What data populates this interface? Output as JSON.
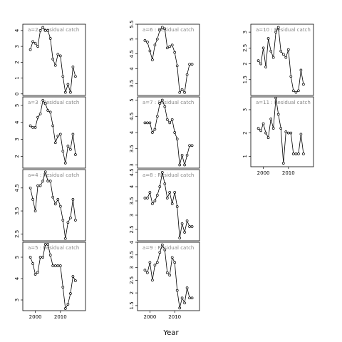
{
  "chart_data": {
    "type": "line",
    "xlabel": "Year",
    "point_style": "open circles",
    "line_color": "#000000",
    "panel_title_color": "#888888",
    "panels": [
      {
        "title": "a=2 : Residual catch",
        "x": [
          1998,
          1999,
          2000,
          2001,
          2002,
          2003,
          2004,
          2005,
          2006,
          2007,
          2008,
          2009,
          2010,
          2011,
          2012,
          2013,
          2014,
          2015,
          2016
        ],
        "y": [
          2.8,
          3.3,
          3.2,
          3.0,
          4.0,
          4.2,
          4.0,
          4.0,
          3.5,
          2.2,
          1.8,
          2.5,
          2.4,
          1.1,
          0.1,
          0.6,
          0.1,
          1.7,
          1.1
        ],
        "xlim": [
          1995,
          2020
        ],
        "ylim": [
          -0.1,
          4.4
        ],
        "yticks": [
          0,
          1,
          2,
          3,
          4
        ],
        "show_x_ticks": false
      },
      {
        "title": "a=3 : Residual catch",
        "x": [
          1998,
          1999,
          2000,
          2001,
          2002,
          2003,
          2004,
          2005,
          2006,
          2007,
          2008,
          2009,
          2010,
          2011,
          2012,
          2013,
          2014,
          2015,
          2016
        ],
        "y": [
          3.8,
          3.7,
          3.7,
          4.3,
          4.5,
          5.3,
          5.1,
          4.7,
          4.6,
          3.8,
          2.8,
          3.2,
          3.3,
          2.3,
          1.6,
          2.6,
          2.4,
          3.3,
          2.1
        ],
        "xlim": [
          1995,
          2020
        ],
        "ylim": [
          1.3,
          5.5
        ],
        "yticks": [
          2,
          3,
          4,
          5
        ],
        "show_x_ticks": false
      },
      {
        "title": "a=4 : Residual catch",
        "x": [
          1998,
          1999,
          2000,
          2001,
          2002,
          2003,
          2004,
          2005,
          2006,
          2007,
          2008,
          2009,
          2010,
          2011,
          2012,
          2013,
          2014,
          2015,
          2016
        ],
        "y": [
          4.5,
          4.0,
          3.5,
          4.6,
          4.6,
          4.8,
          5.2,
          4.8,
          4.8,
          4.1,
          3.8,
          4.0,
          3.7,
          3.1,
          2.3,
          3.0,
          3.2,
          4.0,
          3.1
        ],
        "xlim": [
          1995,
          2020
        ],
        "ylim": [
          2.2,
          5.3
        ],
        "yticks": [
          2.5,
          3.5,
          4.5
        ],
        "show_x_ticks": false
      },
      {
        "title": "a=5 : Residual catch",
        "x": [
          1998,
          1999,
          2000,
          2001,
          2002,
          2003,
          2004,
          2005,
          2006,
          2007,
          2008,
          2009,
          2010,
          2011,
          2012,
          2013,
          2014,
          2015,
          2016
        ],
        "y": [
          5.0,
          4.7,
          4.2,
          4.3,
          5.0,
          5.0,
          5.6,
          5.6,
          5.1,
          4.6,
          4.6,
          4.6,
          4.6,
          3.6,
          2.6,
          2.8,
          3.3,
          4.1,
          3.9
        ],
        "xlim": [
          1995,
          2020
        ],
        "ylim": [
          2.5,
          5.7
        ],
        "yticks": [
          3.0,
          4.0,
          5.0
        ],
        "show_x_ticks": true,
        "xticks": [
          2000,
          2010
        ]
      },
      {
        "title": "a=6 : Residual catch",
        "x": [
          1998,
          1999,
          2000,
          2001,
          2002,
          2003,
          2004,
          2005,
          2006,
          2007,
          2008,
          2009,
          2010,
          2011,
          2012,
          2013,
          2014,
          2015,
          2016,
          2017
        ],
        "y": [
          4.95,
          4.9,
          4.6,
          4.3,
          4.8,
          5.0,
          5.3,
          5.4,
          5.35,
          4.7,
          4.75,
          4.8,
          4.55,
          4.1,
          3.2,
          3.3,
          3.2,
          3.8,
          4.15,
          4.15
        ],
        "xlim": [
          1995,
          2020
        ],
        "ylim": [
          3.1,
          5.5
        ],
        "yticks": [
          3.5,
          4.0,
          4.5,
          5.0,
          5.5
        ],
        "show_x_ticks": false
      },
      {
        "title": "a=7 : Residual catch",
        "x": [
          1998,
          1999,
          2000,
          2001,
          2002,
          2003,
          2004,
          2005,
          2006,
          2007,
          2008,
          2009,
          2010,
          2011,
          2012,
          2013,
          2014,
          2015,
          2016,
          2017
        ],
        "y": [
          4.3,
          4.3,
          4.3,
          4.0,
          4.1,
          4.5,
          4.9,
          5.0,
          4.8,
          4.4,
          4.3,
          4.4,
          4.0,
          3.8,
          3.0,
          3.3,
          3.0,
          3.3,
          3.6,
          3.6
        ],
        "xlim": [
          1995,
          2020
        ],
        "ylim": [
          2.9,
          5.1
        ],
        "yticks": [
          3.0,
          3.5,
          4.0,
          4.5,
          5.0
        ],
        "show_x_ticks": false
      },
      {
        "title": "a=8 : Residual catch",
        "x": [
          1998,
          1999,
          2000,
          2001,
          2002,
          2003,
          2004,
          2005,
          2006,
          2007,
          2008,
          2009,
          2010,
          2011,
          2012,
          2013,
          2014,
          2015,
          2016,
          2017
        ],
        "y": [
          3.6,
          3.6,
          3.8,
          3.4,
          3.5,
          3.7,
          4.0,
          4.5,
          4.1,
          3.6,
          3.8,
          3.4,
          3.8,
          3.3,
          2.2,
          2.7,
          2.4,
          2.8,
          2.6,
          2.6
        ],
        "xlim": [
          1995,
          2020
        ],
        "ylim": [
          2.1,
          4.6
        ],
        "yticks": [
          2.5,
          3.0,
          3.5,
          4.0,
          4.5
        ],
        "show_x_ticks": false
      },
      {
        "title": "a=9 : Residual catch",
        "x": [
          1998,
          1999,
          2000,
          2001,
          2002,
          2003,
          2004,
          2005,
          2006,
          2007,
          2008,
          2009,
          2010,
          2011,
          2012,
          2013,
          2014,
          2015,
          2016,
          2017
        ],
        "y": [
          2.9,
          2.8,
          3.2,
          2.5,
          3.1,
          3.2,
          3.6,
          3.9,
          3.7,
          2.8,
          2.7,
          3.4,
          3.2,
          2.1,
          1.4,
          1.8,
          1.6,
          2.2,
          1.8,
          1.8
        ],
        "xlim": [
          1995,
          2020
        ],
        "ylim": [
          1.3,
          4.0
        ],
        "yticks": [
          1.5,
          2.0,
          2.5,
          3.0,
          3.5,
          4.0
        ],
        "show_x_ticks": true,
        "xticks": [
          2000,
          2010
        ]
      },
      {
        "title": "a=10 : Residual catch",
        "x": [
          1998,
          1999,
          2000,
          2001,
          2002,
          2003,
          2004,
          2005,
          2006,
          2007,
          2008,
          2009,
          2010,
          2011,
          2012,
          2013,
          2014,
          2015,
          2016
        ],
        "y": [
          2.1,
          2.0,
          2.5,
          1.9,
          2.8,
          2.4,
          2.2,
          3.0,
          3.15,
          2.4,
          2.3,
          2.2,
          2.45,
          1.6,
          1.15,
          1.1,
          1.15,
          1.8,
          1.35
        ],
        "xlim": [
          1995,
          2020
        ],
        "ylim": [
          1.0,
          3.25
        ],
        "yticks": [
          1.5,
          2.0,
          2.5,
          3.0
        ],
        "show_x_ticks": false
      },
      {
        "title": "a=11 : Residual catch",
        "x": [
          1998,
          1999,
          2000,
          2001,
          2002,
          2003,
          2004,
          2005,
          2006,
          2007,
          2008,
          2009,
          2010,
          2011,
          2012,
          2013,
          2014,
          2015,
          2016
        ],
        "y": [
          2.2,
          2.1,
          2.4,
          2.0,
          1.8,
          2.6,
          2.2,
          3.5,
          2.8,
          2.2,
          0.7,
          2.05,
          2.0,
          2.0,
          1.1,
          1.1,
          1.1,
          1.95,
          1.1
        ],
        "xlim": [
          1995,
          2020
        ],
        "ylim": [
          0.55,
          3.55
        ],
        "yticks": [
          1.0,
          2.0,
          3.0
        ],
        "show_x_ticks": true,
        "xticks": [
          2000,
          2010
        ]
      }
    ]
  }
}
